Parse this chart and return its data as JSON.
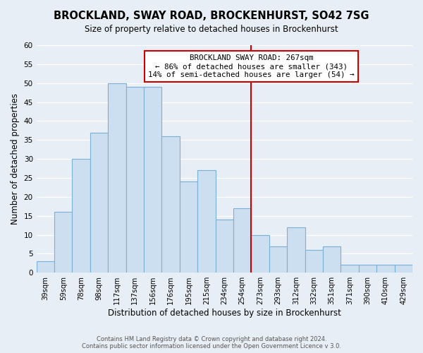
{
  "title": "BROCKLAND, SWAY ROAD, BROCKENHURST, SO42 7SG",
  "subtitle": "Size of property relative to detached houses in Brockenhurst",
  "xlabel": "Distribution of detached houses by size in Brockenhurst",
  "ylabel": "Number of detached properties",
  "categories": [
    "39sqm",
    "59sqm",
    "78sqm",
    "98sqm",
    "117sqm",
    "137sqm",
    "156sqm",
    "176sqm",
    "195sqm",
    "215sqm",
    "234sqm",
    "254sqm",
    "273sqm",
    "293sqm",
    "312sqm",
    "332sqm",
    "351sqm",
    "371sqm",
    "390sqm",
    "410sqm",
    "429sqm"
  ],
  "values": [
    3,
    16,
    30,
    37,
    50,
    49,
    49,
    36,
    24,
    27,
    14,
    17,
    10,
    7,
    12,
    6,
    7,
    2,
    2,
    2,
    2
  ],
  "bar_color": "#ccdff0",
  "bar_edge_color": "#7ab0d4",
  "background_color": "#e8eef5",
  "grid_color": "#ffffff",
  "vline_x_index": 12.0,
  "vline_color": "#cc0000",
  "annotation_text": "BROCKLAND SWAY ROAD: 267sqm\n← 86% of detached houses are smaller (343)\n14% of semi-detached houses are larger (54) →",
  "annotation_box_color": "#ffffff",
  "annotation_box_edge": "#cc0000",
  "ylim": [
    0,
    60
  ],
  "yticks": [
    0,
    5,
    10,
    15,
    20,
    25,
    30,
    35,
    40,
    45,
    50,
    55,
    60
  ],
  "footer": "Contains HM Land Registry data © Crown copyright and database right 2024.\nContains public sector information licensed under the Open Government Licence v 3.0.",
  "title_fontsize": 10.5,
  "subtitle_fontsize": 8.5,
  "xlabel_fontsize": 8.5,
  "ylabel_fontsize": 8.5,
  "footer_fontsize": 6.0
}
